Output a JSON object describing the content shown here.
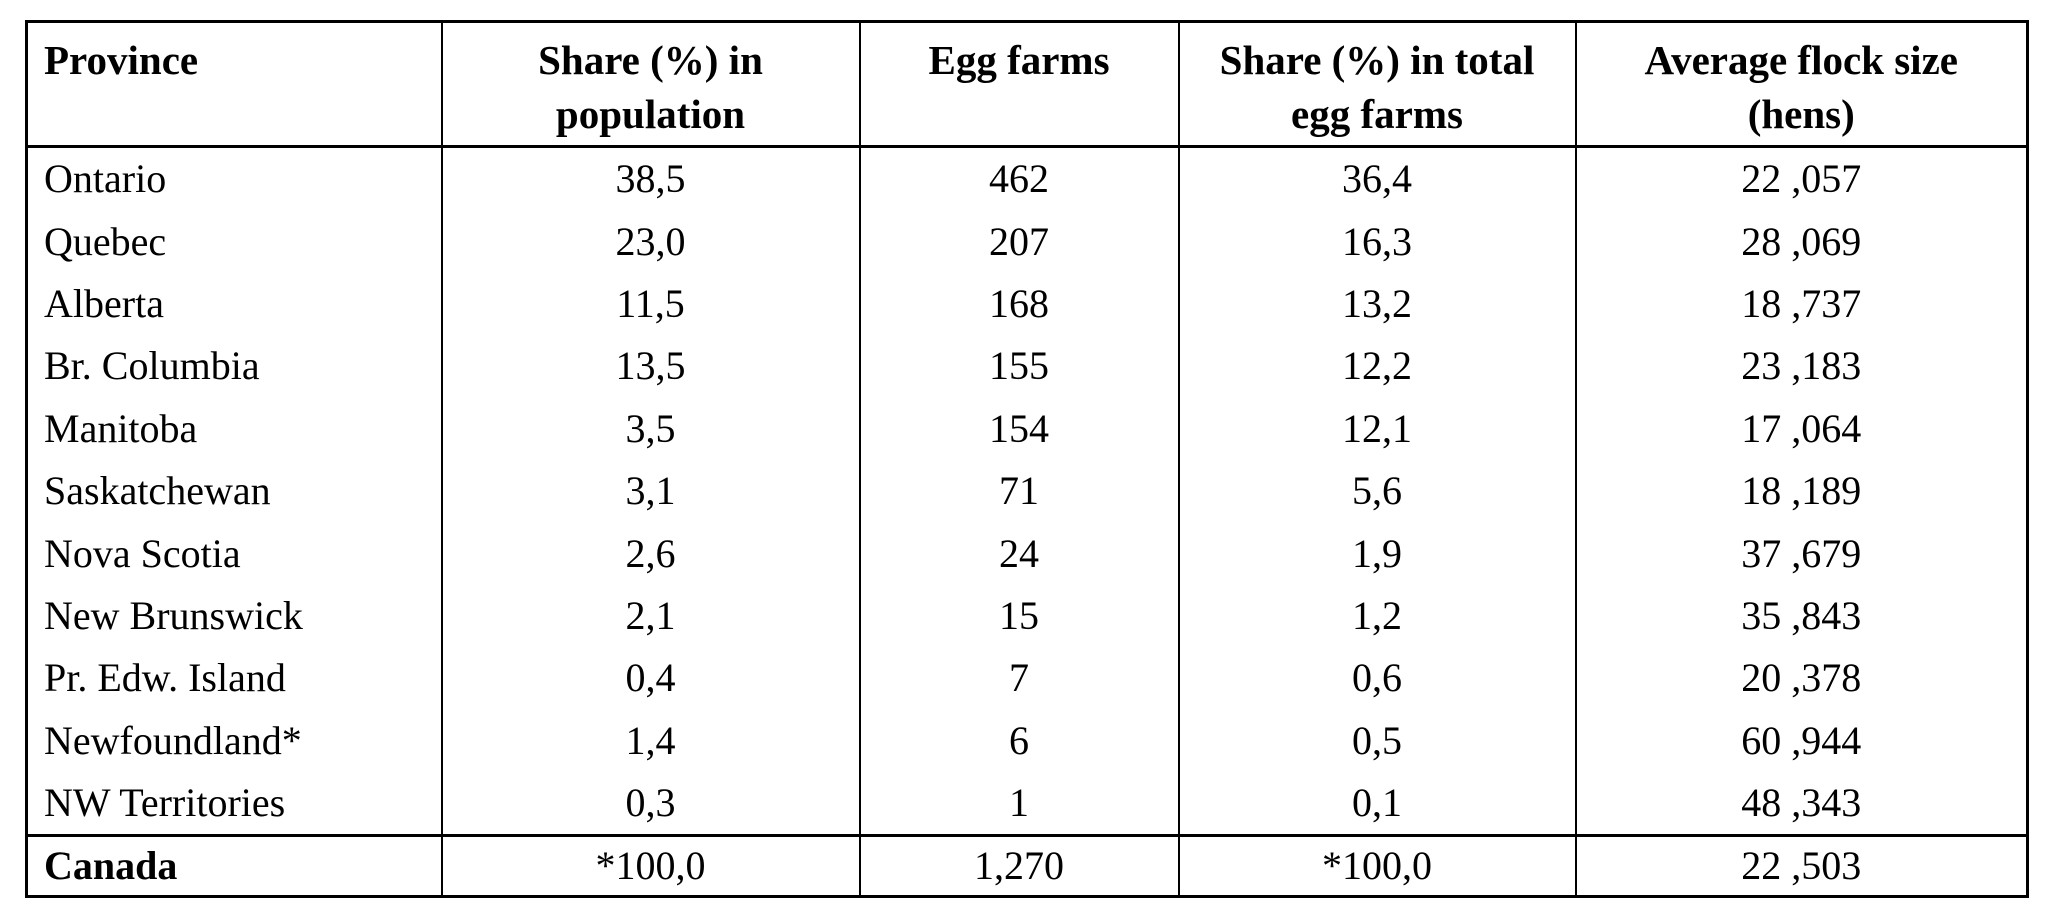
{
  "colors": {
    "background": "#ffffff",
    "border": "#000000",
    "text": "#000000"
  },
  "table": {
    "headers": [
      "Province",
      "Share (%) in\npopulation",
      "Egg farms",
      "Share (%) in total\negg farms",
      "Average flock size\n(hens)"
    ],
    "rows": [
      {
        "cells": [
          "Ontario",
          "38,5",
          "462",
          "36,4",
          "22 ,057"
        ]
      },
      {
        "cells": [
          "Quebec",
          "23,0",
          "207",
          "16,3",
          "28 ,069"
        ]
      },
      {
        "cells": [
          "Alberta",
          "11,5",
          "168",
          "13,2",
          "18 ,737"
        ]
      },
      {
        "cells": [
          "Br. Columbia",
          "13,5",
          "155",
          "12,2",
          "23 ,183"
        ]
      },
      {
        "cells": [
          "Manitoba",
          "3,5",
          "154",
          "12,1",
          "17 ,064"
        ]
      },
      {
        "cells": [
          "Saskatchewan",
          "3,1",
          "71",
          "5,6",
          "18 ,189"
        ]
      },
      {
        "cells": [
          "Nova Scotia",
          "2,6",
          "24",
          "1,9",
          "37 ,679"
        ]
      },
      {
        "cells": [
          "New Brunswick",
          "2,1",
          "15",
          "1,2",
          "35 ,843"
        ]
      },
      {
        "cells": [
          "Pr. Edw. Island",
          "0,4",
          "7",
          "0,6",
          "20 ,378"
        ]
      },
      {
        "cells": [
          "Newfoundland*",
          "1,4",
          "6",
          "0,5",
          "60 ,944"
        ]
      },
      {
        "cells": [
          "NW Territories",
          "0,3",
          "1",
          "0,1",
          "48 ,343"
        ]
      }
    ],
    "footer": {
      "cells": [
        "Canada",
        "*100,0",
        "1,270",
        "*100,0",
        "22 ,503"
      ]
    }
  },
  "chart_data": {
    "type": "table",
    "note": "Decimal separator shown as comma in source; flock sizes shown with space before thousands comma",
    "columns": [
      "Province",
      "Share (%) in population",
      "Egg farms",
      "Share (%) in total egg farms",
      "Average flock size (hens)"
    ],
    "rows": [
      [
        "Ontario",
        38.5,
        462,
        36.4,
        22057
      ],
      [
        "Quebec",
        23.0,
        207,
        16.3,
        28069
      ],
      [
        "Alberta",
        11.5,
        168,
        13.2,
        18737
      ],
      [
        "Br. Columbia",
        13.5,
        155,
        12.2,
        23183
      ],
      [
        "Manitoba",
        3.5,
        154,
        12.1,
        17064
      ],
      [
        "Saskatchewan",
        3.1,
        71,
        5.6,
        18189
      ],
      [
        "Nova Scotia",
        2.6,
        24,
        1.9,
        37679
      ],
      [
        "New Brunswick",
        2.1,
        15,
        1.2,
        35843
      ],
      [
        "Pr. Edw. Island",
        0.4,
        7,
        0.6,
        20378
      ],
      [
        "Newfoundland*",
        1.4,
        6,
        0.5,
        60944
      ],
      [
        "NW Territories",
        0.3,
        1,
        0.1,
        48343
      ],
      [
        "Canada",
        100.0,
        1270,
        100.0,
        22503
      ]
    ]
  }
}
